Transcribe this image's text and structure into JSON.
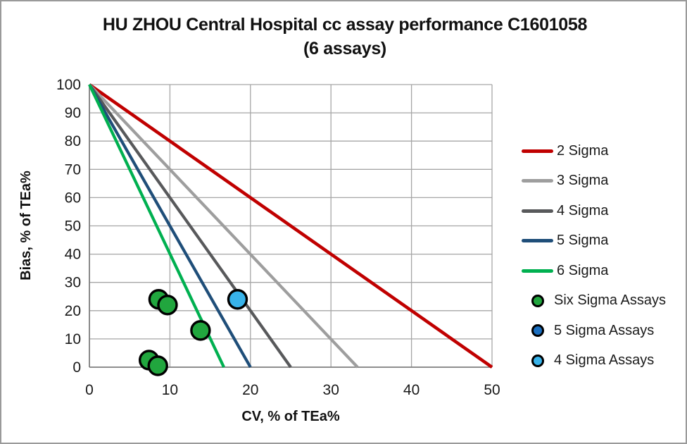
{
  "title": {
    "line1": "HU ZHOU Central Hospital cc assay performance C1601058",
    "line2": "(6 assays)"
  },
  "chart_data": {
    "type": "scatter",
    "title": "HU ZHOU Central Hospital cc assay performance C1601058 (6 assays)",
    "xlabel": "CV, % of TEa%",
    "ylabel": "Bias, % of TEa%",
    "xlim": [
      0,
      50
    ],
    "ylim": [
      0,
      100
    ],
    "x_ticks": [
      0,
      10,
      20,
      30,
      40,
      50
    ],
    "y_ticks": [
      0,
      10,
      20,
      30,
      40,
      50,
      60,
      70,
      80,
      90,
      100
    ],
    "grid": true,
    "legend_position": "right",
    "colors": {
      "grid": "#a6a6a6",
      "axis": "#808080",
      "tick_text": "#1a1a1a",
      "marker_outline": "#000000"
    },
    "lines": [
      {
        "name": "2 Sigma",
        "color": "#c00000",
        "points": [
          [
            0,
            100
          ],
          [
            50,
            0
          ]
        ]
      },
      {
        "name": "3 Sigma",
        "color": "#9e9e9e",
        "points": [
          [
            0,
            100
          ],
          [
            33.3,
            0
          ]
        ]
      },
      {
        "name": "4 Sigma",
        "color": "#58595b",
        "points": [
          [
            0,
            100
          ],
          [
            25,
            0
          ]
        ]
      },
      {
        "name": "5 Sigma",
        "color": "#1f4e79",
        "points": [
          [
            0,
            100
          ],
          [
            20,
            0
          ]
        ]
      },
      {
        "name": "6 Sigma",
        "color": "#00b050",
        "points": [
          [
            0,
            100
          ],
          [
            16.7,
            0
          ]
        ]
      }
    ],
    "series": [
      {
        "name": "Six Sigma Assays",
        "marker_color": "#21a63e",
        "points": [
          [
            8.6,
            24
          ],
          [
            9.7,
            22
          ],
          [
            13.8,
            13
          ],
          [
            7.4,
            2.5
          ],
          [
            8.5,
            0.5
          ]
        ]
      },
      {
        "name": "5 Sigma Assays",
        "marker_color": "#1b6fc0",
        "points": []
      },
      {
        "name": "4 Sigma Assays",
        "marker_color": "#38b3ea",
        "points": [
          [
            18.4,
            24
          ]
        ]
      }
    ]
  }
}
